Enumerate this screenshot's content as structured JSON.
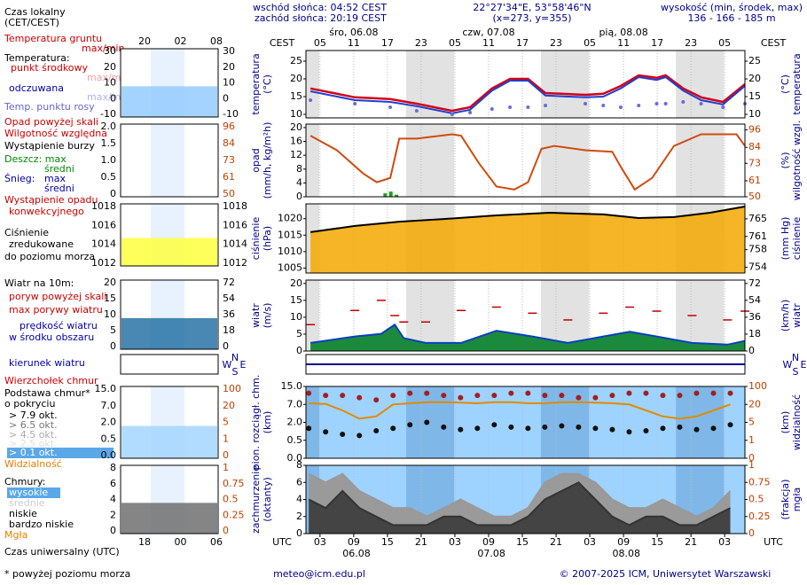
{
  "header": {
    "sunrise": "wschód słońca: 04:52 CEST",
    "sunset": "zachód słońca: 20:19 CEST",
    "coords": "22°27'34\"E, 53°58'46\"N",
    "grid": "(x=273, y=355)",
    "height_label": "wysokość (min, środek, max)",
    "height": "136 - 166 - 185 m"
  },
  "footer": {
    "email": "meteo@icm.edu.pl",
    "copyright": "© 2007-2025 ICM, Uniwersytet Warszawski"
  },
  "compass": [
    "N",
    "W",
    "S",
    "E"
  ],
  "time": {
    "local_name": "CEST",
    "utc_name": "UTC",
    "xlim": [
      2.5,
      80.6
    ],
    "local_ticks": [
      {
        "value": 5,
        "label": "05"
      },
      11,
      17,
      23,
      {
        "value": 29,
        "label": "05"
      },
      {
        "value": 35,
        "label": "11"
      },
      {
        "value": 41,
        "label": "17"
      },
      {
        "value": 47,
        "label": "23"
      },
      {
        "value": 53,
        "label": "05"
      },
      {
        "value": 59,
        "label": "11"
      },
      {
        "value": 65,
        "label": "17"
      },
      {
        "value": 71,
        "label": "23"
      },
      {
        "value": 77,
        "label": "05"
      }
    ],
    "utc_ticks": [
      {
        "value": 5,
        "label": "03"
      },
      {
        "value": 11,
        "label": "09"
      },
      {
        "value": 17,
        "label": "15"
      },
      {
        "value": 23,
        "label": "21"
      },
      {
        "value": 29,
        "label": "03"
      },
      {
        "value": 35,
        "label": "09"
      },
      {
        "value": 41,
        "label": "15"
      },
      {
        "value": 47,
        "label": "21"
      },
      {
        "value": 53,
        "label": "03"
      },
      {
        "value": 59,
        "label": "09"
      },
      {
        "value": 65,
        "label": "15"
      },
      {
        "value": 71,
        "label": "21"
      },
      {
        "value": 77,
        "label": "03"
      }
    ],
    "days_top": [
      "śro, 06.08",
      "czw, 07.08",
      "pią, 08.08"
    ],
    "days_bottom": [
      "06.08",
      "07.08",
      "08.08"
    ]
  },
  "legend": {
    "labels": [
      "Czas lokalny",
      "(CET/CEST)",
      "Temperatura gruntu",
      "max/min",
      "Temperatura:",
      "punkt środkowy",
      "max/min",
      "odczuwana",
      "max/min",
      "Temp. punktu rosy",
      "Opad powyżej skali",
      "Wilgotność względna",
      "Wystąpienie burzy",
      "Deszcz: max",
      "średni",
      "Śnieg:",
      "max",
      "średni",
      "Wystąpienie opadu",
      "konwekcyjnego",
      "Ciśnienie",
      "zredukowane",
      "do poziomu morza",
      "Wiatr na 10m:",
      "poryw powyżej skali",
      "max porywy wiatru",
      "prędkość wiatru",
      "w środku obszaru",
      "kierunek wiatru",
      "Wierzchołek chmur",
      "Podstawa chmur*",
      "o pokryciu",
      "> 7.9 okt.",
      "> 6.5 okt.",
      "> 4.5 okt.",
      "> 2.5 okt.",
      "> 0.1 okt.",
      "Widzialność",
      "Chmury:",
      "wysokie",
      "średnie",
      "niskie",
      "bardzo niskie",
      "Mgła",
      "Czas uniwersalny (UTC)",
      "* powyżej poziomu morza"
    ],
    "time_top": [
      "20",
      "02",
      "08"
    ],
    "time_bottom": [
      "18",
      "00",
      "06"
    ],
    "panels": [
      {
        "left": [
          30,
          20,
          10,
          0,
          -10
        ],
        "right": [
          30,
          20,
          10,
          0,
          -10
        ]
      },
      {
        "left": [
          {
            "value": 2,
            "label": "2.0"
          },
          1.5,
          {
            "value": 1,
            "label": "1.0"
          },
          0.5,
          0
        ],
        "right": [
          96,
          84,
          73,
          61,
          50
        ]
      },
      {
        "left": [
          1018,
          1016,
          1014,
          1012
        ],
        "right": [
          1018,
          1016,
          1014,
          1012
        ]
      },
      {
        "left": [
          20,
          15,
          10,
          5,
          0
        ],
        "right": [
          72,
          54,
          36,
          18,
          0
        ]
      },
      {
        "left": [
          {
            "value": 15,
            "label": "15.0"
          },
          {
            "value": 7,
            "label": "7.0"
          },
          {
            "value": 2,
            "label": "2.0"
          },
          0.5,
          {
            "value": 0,
            "label": "0.0"
          }
        ],
        "right": [
          100,
          20,
          5,
          1,
          0
        ]
      },
      {
        "left": [
          8,
          6,
          4,
          2,
          0
        ],
        "right": [
          1,
          0.75,
          0.5,
          0.25,
          0
        ]
      }
    ]
  },
  "chart_data": [
    {
      "type": "line",
      "ylabel": [
        "temperatura",
        "(°C)"
      ],
      "y2label": [
        "(°C)",
        "temperatura"
      ],
      "ylim": [
        9,
        28
      ],
      "yticks": [
        10,
        15,
        20,
        25
      ],
      "y2lim": [
        9,
        28
      ],
      "y2ticks": [
        10,
        15,
        20,
        25
      ],
      "x": [
        3.3,
        11.2,
        17.5,
        22.2,
        28.5,
        31.7,
        35.6,
        38.8,
        42,
        45.1,
        52.2,
        55.4,
        58.5,
        61.7,
        64.9,
        66.5,
        69.6,
        72.8,
        76.7,
        80.6
      ],
      "series": [
        {
          "style": "line",
          "color": "#d0021b",
          "values": [
            17.3,
            14.8,
            14.3,
            13,
            11,
            12,
            17.3,
            20,
            20,
            16,
            15.5,
            15.8,
            18,
            21,
            20.3,
            21,
            17.3,
            14.8,
            13.5,
            18.5
          ]
        },
        {
          "style": "line",
          "color": "#1f3fd0",
          "values": [
            16.5,
            14,
            13.5,
            12.3,
            10.3,
            11.3,
            16.7,
            19.5,
            19.5,
            15.3,
            14.8,
            15,
            17.3,
            20.5,
            19.7,
            20.5,
            16.7,
            14,
            12.8,
            18
          ]
        },
        {
          "style": "dots",
          "color": "#6a6ae0",
          "values": [
            14,
            13,
            12,
            11,
            10,
            10.5,
            11.5,
            12,
            12,
            12.5,
            13,
            12.5,
            12,
            12.5,
            13,
            13,
            13.5,
            13,
            12,
            13
          ]
        }
      ]
    },
    {
      "type": "line",
      "ylabel": [
        "opad",
        "(mm/h, kg/m²h)"
      ],
      "y2label": [
        "(%)",
        "wilgotność wzgl."
      ],
      "ylim": [
        0,
        21
      ],
      "yticks": [
        0,
        4,
        8,
        12,
        16,
        20
      ],
      "y2lim": [
        50,
        100
      ],
      "y2ticks": [
        50,
        61,
        73,
        84,
        96
      ],
      "series": [
        {
          "style": "line",
          "axis": "y2",
          "color": "#d04a10",
          "x": [
            3.3,
            8,
            12.7,
            15.1,
            17.5,
            19.1,
            22.2,
            28.5,
            30.1,
            33.3,
            36.4,
            39.6,
            42,
            44.4,
            46.7,
            52.2,
            57,
            58.6,
            61,
            64.1,
            68,
            72.8,
            79.1,
            80.6
          ],
          "values": [
            92,
            82,
            66,
            60,
            63,
            90,
            90,
            93,
            92,
            73,
            57,
            55,
            60,
            83,
            85,
            82,
            81,
            70,
            55,
            63,
            85,
            93,
            93,
            85
          ]
        },
        {
          "style": "bar",
          "color": "#1a9e1a",
          "x": [
            16.6,
            17.6,
            18.6
          ],
          "values": [
            1,
            1.5,
            0.6
          ]
        }
      ]
    },
    {
      "type": "line",
      "ylabel": [
        "ciśnienie",
        "(hPa)"
      ],
      "y2label": [
        "(mm Hg)",
        "ciśnienie"
      ],
      "ylim": [
        1003.5,
        1024.5
      ],
      "yticks": [
        1005,
        1010,
        1015,
        1020
      ],
      "y2lim": [
        752.7,
        768.4
      ],
      "y2ticks": [
        754,
        758,
        761,
        765
      ],
      "x": [
        3.3,
        11.2,
        19.1,
        27,
        36.4,
        45.9,
        55.4,
        61.7,
        68,
        74.4,
        80.6
      ],
      "series": [
        {
          "style": "area",
          "color": "#000000",
          "fill": "#f4a800",
          "values": [
            1015.9,
            1017.8,
            1019.1,
            1019.9,
            1021,
            1021.8,
            1021.3,
            1020.2,
            1020.5,
            1021.8,
            1023.7
          ]
        }
      ]
    },
    {
      "type": "line",
      "ylabel": [
        "wiatr",
        "(m/s)"
      ],
      "y2label": [
        "(km/h)",
        "wiatr"
      ],
      "ylim": [
        0,
        21
      ],
      "yticks": [
        0,
        5,
        10,
        15,
        20
      ],
      "y2lim": [
        0,
        75.6
      ],
      "y2ticks": [
        0,
        18,
        36,
        54,
        72
      ],
      "x": [
        3.3,
        11.2,
        15.9,
        18.3,
        19.9,
        23.8,
        30.1,
        36.4,
        42.8,
        49.1,
        55.4,
        60.1,
        64.9,
        71.2,
        77.5,
        80.6
      ],
      "series": [
        {
          "style": "area",
          "color": "#0a40c0",
          "fill": "#1c8a3c",
          "values": [
            2.4,
            4.3,
            5.1,
            7.8,
            3.8,
            2.4,
            2.4,
            6,
            4.3,
            2.4,
            4.3,
            5.7,
            4.3,
            2.4,
            1.9,
            3
          ]
        },
        {
          "style": "dash",
          "color": "#c00000",
          "values": [
            7.8,
            12,
            15,
            10.5,
            8.6,
            8.6,
            12,
            13,
            11.2,
            9.2,
            11.2,
            13,
            11.8,
            10.5,
            9.2,
            11.8
          ]
        }
      ]
    },
    {
      "type": "line",
      "scale": "ticks",
      "ylabel": [
        "pion. rozciągł. chm.",
        "(km)"
      ],
      "y2label": [
        "(km)",
        "widzialność"
      ],
      "ylim": [
        0,
        15
      ],
      "yticks": [
        {
          "value": 0,
          "label": "0.0"
        },
        0.5,
        {
          "value": 2,
          "label": "2.0"
        },
        {
          "value": 7,
          "label": "7.0"
        },
        {
          "value": 15,
          "label": "15.0"
        }
      ],
      "y2lim": [
        0,
        100
      ],
      "y2ticks": [
        0,
        1,
        5,
        20,
        100
      ],
      "x": [
        3,
        6,
        9,
        12,
        15,
        18,
        21,
        24,
        27,
        30,
        33,
        36,
        39,
        42,
        45,
        48,
        51,
        54,
        57,
        60,
        63,
        66,
        69,
        72,
        75,
        78
      ],
      "series": [
        {
          "style": "dots",
          "color": "#a02020",
          "values": [
            12,
            11,
            11,
            10,
            9,
            11,
            12,
            12,
            11,
            10,
            11,
            11,
            12,
            12,
            11,
            11,
            10,
            10,
            11,
            12,
            12,
            11,
            11,
            12,
            12,
            12
          ]
        },
        {
          "style": "dots",
          "color": "#111111",
          "values": [
            1.5,
            1.2,
            1,
            0.9,
            1.3,
            1.5,
            1.8,
            2,
            1.6,
            1.4,
            1.5,
            1.8,
            1.6,
            1.5,
            1.6,
            1.7,
            1.6,
            1.5,
            1.4,
            1.2,
            1.3,
            1.5,
            1.6,
            1.4,
            1.5,
            1.8
          ]
        },
        {
          "style": "line",
          "axis": "y2",
          "color": "#e08a00",
          "values": [
            25,
            22,
            15,
            8,
            10,
            20,
            25,
            30,
            30,
            28,
            25,
            30,
            30,
            25,
            25,
            30,
            30,
            28,
            25,
            20,
            15,
            10,
            8,
            10,
            15,
            20
          ]
        }
      ]
    },
    {
      "type": "line",
      "ylabel": [
        "zachmurzenie",
        "(oktanty)"
      ],
      "y2label": [
        "(frakcja)",
        "mgła"
      ],
      "ylim": [
        0,
        8
      ],
      "yticks": [
        0,
        2,
        4,
        6,
        8
      ],
      "y2lim": [
        0,
        1
      ],
      "y2ticks": [
        0,
        0.25,
        0.5,
        0.75,
        1
      ],
      "x": [
        3,
        6,
        9,
        12,
        15,
        18,
        21,
        24,
        27,
        30,
        33,
        36,
        39,
        42,
        45,
        48,
        51,
        54,
        57,
        60,
        63,
        66,
        69,
        72,
        75,
        78
      ],
      "series": [
        {
          "style": "area",
          "color": "#999999",
          "fill": "#9a9a9a",
          "values": [
            7,
            6,
            7,
            5,
            4,
            3,
            3,
            2,
            3,
            4,
            3,
            2,
            2,
            3,
            6,
            7,
            7,
            6,
            4,
            3,
            3,
            4,
            3,
            2,
            3,
            5
          ]
        },
        {
          "style": "area",
          "color": "#333333",
          "fill": "#444444",
          "values": [
            4,
            3,
            5,
            3,
            2,
            1,
            1,
            1,
            2,
            2,
            1,
            1,
            1,
            2,
            4,
            5,
            6,
            4,
            2,
            1,
            2,
            2,
            1,
            1,
            2,
            3
          ]
        }
      ]
    }
  ]
}
